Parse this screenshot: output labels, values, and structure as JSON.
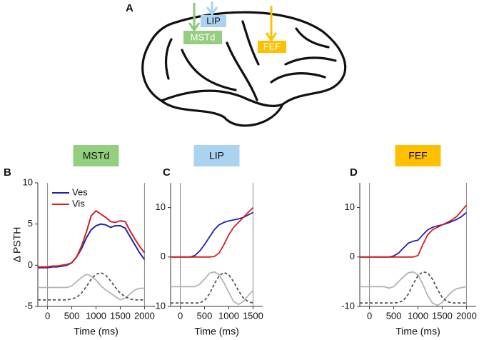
{
  "brain": {
    "label": "A",
    "regions": [
      "LIP",
      "MSTd",
      "FEF"
    ]
  },
  "chart_data": [
    {
      "type": "line",
      "panel": "B",
      "title": "MSTd",
      "title_color": "#93cf7f",
      "ylabel": "Δ PSTH",
      "xlabel": "Time (ms)",
      "legend": "upper left",
      "vlines": [
        0,
        2000
      ],
      "x": [
        -200,
        -100,
        0,
        100,
        200,
        300,
        400,
        500,
        600,
        700,
        800,
        900,
        1000,
        1100,
        1200,
        1300,
        1400,
        1500,
        1600,
        1700,
        1800,
        1900,
        2000
      ],
      "xlim": [
        -200,
        2200
      ],
      "xticks": [
        0,
        500,
        1000,
        1500,
        2000
      ],
      "ylim": [
        -5,
        10
      ],
      "yticks": [
        -5,
        0,
        5,
        10
      ],
      "series": [
        {
          "name": "Ves",
          "color": "#1f22b0",
          "values": [
            -0.3,
            -0.3,
            -0.3,
            -0.2,
            -0.2,
            -0.1,
            0,
            0.3,
            1,
            2,
            3.3,
            4.3,
            4.8,
            5,
            4.9,
            4.6,
            4.8,
            4.8,
            4.5,
            3.5,
            2.5,
            1.5,
            0.7
          ]
        },
        {
          "name": "Vis",
          "color": "#d3201f",
          "values": [
            -0.2,
            -0.2,
            -0.2,
            -0.1,
            -0.1,
            0,
            0.1,
            0.3,
            1,
            2.3,
            4,
            6,
            6.6,
            6.2,
            5.8,
            5.3,
            5.2,
            5.4,
            5.3,
            4.2,
            3.2,
            2.3,
            1.5
          ]
        },
        {
          "color": "#b4b4b4",
          "values": [
            -2.7,
            -2.7,
            -2.7,
            -2.7,
            -2.7,
            -2.7,
            -2.7,
            -2.5,
            -2,
            -1.5,
            -1.1,
            -1.3,
            -1.8,
            -2.5,
            -3,
            -3.4,
            -3.8,
            -4.2,
            -4,
            -3.5,
            -3,
            -2.8,
            -2.8
          ]
        },
        {
          "color": "#555555",
          "dash": true,
          "values": [
            -4.2,
            -4.2,
            -4.2,
            -4.2,
            -4.2,
            -4.2,
            -4.2,
            -4.1,
            -3.9,
            -3.4,
            -2.6,
            -1.7,
            -1.1,
            -0.9,
            -1.2,
            -1.9,
            -2.7,
            -3.4,
            -3.8,
            -4.1,
            -4.2,
            -4.2,
            -4.2
          ]
        }
      ]
    },
    {
      "type": "line",
      "panel": "C",
      "title": "LIP",
      "title_color": "#a9d3ef",
      "xlabel": "Time (ms)",
      "vlines": [
        0,
        1500
      ],
      "x": [
        -200,
        -100,
        0,
        100,
        200,
        300,
        400,
        500,
        600,
        700,
        800,
        900,
        1000,
        1100,
        1200,
        1300,
        1400,
        1500
      ],
      "xlim": [
        -200,
        1700
      ],
      "xticks": [
        0,
        500,
        1000,
        1500
      ],
      "ylim": [
        -10,
        15
      ],
      "yticks": [
        -10,
        0,
        10
      ],
      "series": [
        {
          "color": "#1f22b0",
          "values": [
            0,
            0,
            0,
            0,
            0,
            0.3,
            1.2,
            2.5,
            4,
            5.5,
            6.5,
            7,
            7.3,
            7.5,
            7.7,
            8,
            8.5,
            9
          ]
        },
        {
          "color": "#d3201f",
          "values": [
            0,
            0,
            0,
            0,
            0,
            0,
            0,
            0,
            0,
            0.1,
            0.8,
            2.5,
            4.5,
            6,
            7,
            8,
            9,
            10
          ]
        },
        {
          "color": "#b4b4b4",
          "values": [
            -6,
            -6,
            -6,
            -6,
            -6,
            -6,
            -5.5,
            -4.5,
            -3.3,
            -3,
            -3.6,
            -5.2,
            -7.2,
            -9,
            -9.6,
            -9,
            -7.8,
            -6.8
          ]
        },
        {
          "color": "#555555",
          "dash": true,
          "values": [
            -9.3,
            -9.3,
            -9.3,
            -9.3,
            -9.3,
            -9.3,
            -9.3,
            -8.8,
            -7.5,
            -5.5,
            -3.8,
            -3.1,
            -3.6,
            -5,
            -6.8,
            -8.3,
            -9,
            -9.3
          ]
        }
      ]
    },
    {
      "type": "line",
      "panel": "D",
      "title": "FEF",
      "title_color": "#ffc000",
      "xlabel": "Time (ms)",
      "vlines": [
        0,
        2000
      ],
      "x": [
        -200,
        -100,
        0,
        100,
        200,
        300,
        400,
        500,
        600,
        700,
        800,
        900,
        1000,
        1100,
        1200,
        1300,
        1400,
        1500,
        1600,
        1700,
        1800,
        1900,
        2000
      ],
      "xlim": [
        -200,
        2200
      ],
      "xticks": [
        0,
        500,
        1000,
        1500,
        2000
      ],
      "ylim": [
        -10,
        15
      ],
      "yticks": [
        -10,
        0,
        10
      ],
      "series": [
        {
          "color": "#1f22b0",
          "values": [
            0,
            0,
            0,
            0,
            0,
            0,
            0,
            0.2,
            0.8,
            1.8,
            2.8,
            3.2,
            3.4,
            4.5,
            5.5,
            6,
            6.3,
            6.5,
            6.8,
            7.2,
            7.6,
            8.2,
            9
          ]
        },
        {
          "color": "#d3201f",
          "values": [
            0,
            0,
            0,
            0,
            0,
            0,
            0,
            0,
            0,
            0,
            0,
            0,
            0.3,
            2.5,
            4.5,
            5.5,
            6,
            6.5,
            7,
            7.5,
            8.2,
            9.3,
            10.5
          ]
        },
        {
          "color": "#b4b4b4",
          "values": [
            -6,
            -6,
            -6,
            -6,
            -6,
            -6,
            -6.3,
            -6,
            -5,
            -4,
            -3.2,
            -3,
            -3.6,
            -5.5,
            -7.8,
            -9.3,
            -9.8,
            -9.2,
            -8,
            -7,
            -6.4,
            -6.2,
            -6
          ]
        },
        {
          "color": "#555555",
          "dash": true,
          "values": [
            -9.3,
            -9.3,
            -9.3,
            -9.3,
            -9.3,
            -9.3,
            -9.3,
            -9.3,
            -9.2,
            -8.8,
            -7.5,
            -5.5,
            -3.8,
            -3,
            -3.2,
            -4.5,
            -6.5,
            -8.2,
            -9,
            -9.3,
            -9.3,
            -9.3,
            -9.3
          ]
        }
      ]
    }
  ]
}
